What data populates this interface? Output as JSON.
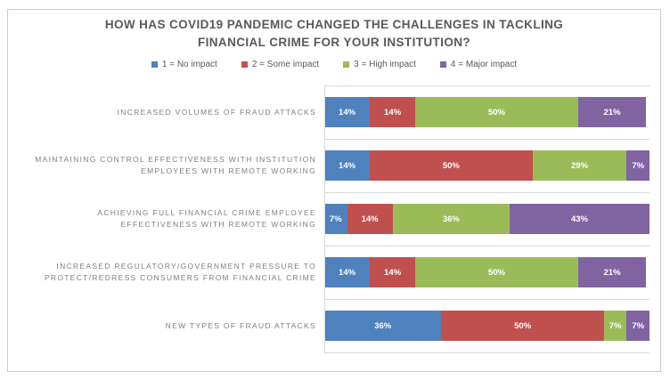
{
  "figure": {
    "title": "HOW HAS COVID19 PANDEMIC CHANGED THE CHALLENGES IN TACKLING FINANCIAL CRIME FOR YOUR INSTITUTION?",
    "title_line1": "HOW HAS COVID19 PANDEMIC CHANGED THE CHALLENGES IN TACKLING",
    "title_line2": "FINANCIAL CRIME FOR YOUR INSTITUTION?"
  },
  "legend": {
    "position": "top",
    "items": [
      {
        "label": "1 = No impact",
        "color": "#4f81bd"
      },
      {
        "label": "2 = Some impact",
        "color": "#c0504d"
      },
      {
        "label": "3 = High impact",
        "color": "#9bbb59"
      },
      {
        "label": "4 = Major impact",
        "color": "#8064a2"
      }
    ]
  },
  "chart_data": {
    "type": "bar",
    "orientation": "horizontal",
    "stacked": true,
    "unit": "percent",
    "title": "HOW HAS COVID19 PANDEMIC CHANGED THE CHALLENGES IN TACKLING FINANCIAL CRIME FOR YOUR INSTITUTION?",
    "categories": [
      "INCREASED VOLUMES OF FRAUD ATTACKS",
      "MAINTAINING CONTROL EFFECTIVENESS WITH INSTITUTION EMPLOYEES WITH REMOTE WORKING",
      "ACHIEVING FULL FINANCIAL CRIME EMPLOYEE EFFECTIVENESS WITH REMOTE WORKING",
      "INCREASED REGULATORY/GOVERNMENT PRESSURE TO PROTECT/REDRESS CONSUMERS FROM FINANCIAL CRIME",
      "NEW TYPES OF FRAUD ATTACKS"
    ],
    "series": [
      {
        "name": "1 = No impact",
        "color": "#4f81bd",
        "values": [
          14,
          14,
          7,
          14,
          36
        ]
      },
      {
        "name": "2 = Some impact",
        "color": "#c0504d",
        "values": [
          14,
          50,
          14,
          14,
          50
        ]
      },
      {
        "name": "3 = High impact",
        "color": "#9bbb59",
        "values": [
          50,
          29,
          36,
          50,
          7
        ]
      },
      {
        "name": "4 = Major impact",
        "color": "#8064a2",
        "values": [
          21,
          7,
          43,
          21,
          7
        ]
      }
    ],
    "data_label_format": "{value}%",
    "xlim": [
      0,
      100
    ],
    "gridlines": "category-separator-lines",
    "legend_position": "top",
    "colors": {
      "title_text": "#595959",
      "category_label_text": "#7f7f7f",
      "data_label_text": "#ffffff",
      "gridline": "#d9d9d9",
      "figure_border": "#c6ced6",
      "background": "#ffffff"
    }
  }
}
